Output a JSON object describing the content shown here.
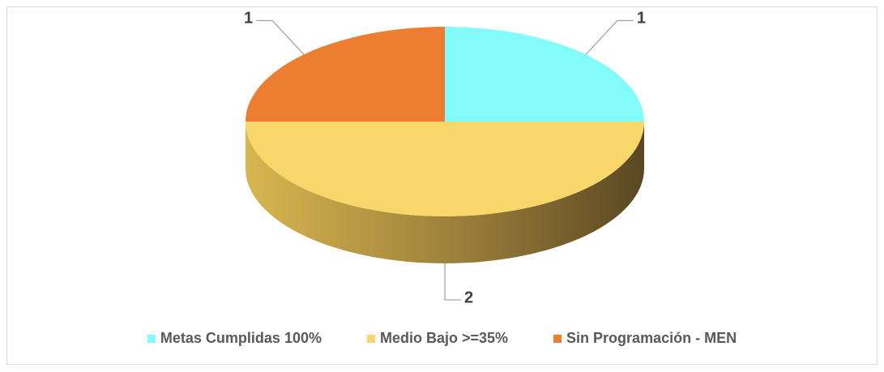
{
  "chart_data": {
    "type": "pie",
    "categories": [
      "Metas Cumplidas 100%",
      "Medio Bajo >=35%",
      "Sin Programación - MEN"
    ],
    "values": [
      1,
      2,
      1
    ],
    "colors": [
      "#84FBFB",
      "#F9D66A",
      "#ED7D31"
    ],
    "legend": "bottom"
  }
}
